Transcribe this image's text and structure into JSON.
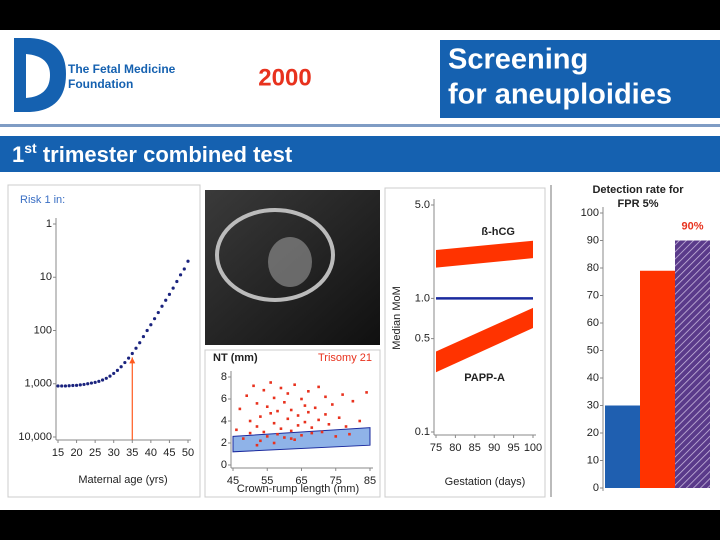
{
  "header": {
    "org_line1": "The Fetal Medicine",
    "org_line2": "Foundation",
    "year": "2000",
    "title_line1": "Screening",
    "title_line2": "for aneuploidies",
    "subtitle": [
      "1",
      "st",
      " trimester combined test"
    ]
  },
  "chart_data": [
    {
      "type": "scatter",
      "ylabel": "Risk 1 in:",
      "xlabel": "Maternal age (yrs)",
      "color": "#1a237e",
      "log_y": true,
      "x": [
        15,
        16,
        17,
        18,
        19,
        20,
        21,
        22,
        23,
        24,
        25,
        26,
        27,
        28,
        29,
        30,
        31,
        32,
        33,
        34,
        35,
        36,
        37,
        38,
        39,
        40,
        41,
        42,
        43,
        44,
        45,
        46,
        47,
        48,
        49,
        50
      ],
      "values": [
        1100,
        1100,
        1100,
        1090,
        1080,
        1070,
        1050,
        1030,
        1000,
        970,
        940,
        900,
        850,
        790,
        720,
        640,
        560,
        480,
        400,
        330,
        270,
        215,
        170,
        130,
        100,
        78,
        60,
        46,
        35,
        27,
        21,
        16,
        12,
        9,
        7,
        5
      ],
      "xlim": [
        15,
        50
      ],
      "xticks": [
        15,
        20,
        25,
        30,
        35,
        40,
        45,
        50
      ],
      "ylim": [
        10000,
        1
      ],
      "yticks": [
        1,
        10,
        100,
        {
          "value": 1000,
          "label": "1,000"
        },
        {
          "value": 10000,
          "label": "10,000"
        }
      ],
      "marker_x": 35,
      "marker_color": "#ff5a1f"
    },
    {
      "type": "scatter",
      "title": "NT (mm)",
      "annotation": "Trisomy 21",
      "xlabel": "Crown-rump length (mm)",
      "color": "#e8321e",
      "x": [
        46,
        47,
        48,
        49,
        50,
        50,
        51,
        52,
        52,
        53,
        53,
        54,
        54,
        55,
        55,
        56,
        56,
        57,
        57,
        58,
        58,
        59,
        59,
        60,
        60,
        61,
        61,
        62,
        62,
        63,
        63,
        64,
        64,
        65,
        65,
        66,
        66,
        67,
        67,
        68,
        68,
        69,
        70,
        70,
        71,
        72,
        72,
        73,
        74,
        75,
        76,
        77,
        78,
        79,
        80,
        82,
        84,
        52,
        57,
        62
      ],
      "values": [
        3.2,
        5.1,
        2.4,
        6.3,
        4.0,
        2.9,
        7.2,
        3.5,
        5.6,
        2.2,
        4.4,
        6.8,
        3.0,
        5.3,
        2.6,
        4.7,
        7.5,
        3.8,
        6.1,
        2.8,
        4.9,
        3.3,
        7.0,
        5.7,
        2.5,
        4.2,
        6.5,
        3.1,
        5.0,
        2.3,
        7.3,
        4.5,
        3.6,
        6.0,
        2.7,
        5.4,
        3.9,
        4.8,
        6.7,
        3.4,
        2.9,
        5.2,
        4.1,
        7.1,
        3.0,
        6.2,
        4.6,
        3.7,
        5.5,
        2.6,
        4.3,
        6.4,
        3.5,
        2.8,
        5.8,
        4.0,
        6.6,
        1.8,
        2.0,
        2.4
      ],
      "band": {
        "color": "#8fb3e8",
        "x": [
          45,
          85
        ],
        "lower": [
          1.2,
          1.8
        ],
        "upper": [
          2.6,
          3.4
        ]
      },
      "xlim": [
        45,
        85
      ],
      "xticks": [
        45,
        55,
        65,
        75,
        85
      ],
      "ylim": [
        0,
        8
      ],
      "yticks": [
        0,
        2,
        4,
        6,
        8
      ]
    },
    {
      "type": "line",
      "ylabel": "Median MoM",
      "xlabel": "Gestation (days)",
      "log_y": true,
      "series": [
        {
          "name": "ß-hCG",
          "color": "#ff3300",
          "x": [
            75,
            100
          ],
          "lower": [
            1.7,
            2.0
          ],
          "upper": [
            2.3,
            2.7
          ]
        },
        {
          "name": "PAPP-A",
          "color": "#ff3300",
          "x": [
            75,
            100
          ],
          "lower": [
            0.28,
            0.6
          ],
          "upper": [
            0.4,
            0.85
          ]
        }
      ],
      "reference": {
        "color": "#1a2a9e",
        "x": [
          75,
          100
        ],
        "values": [
          1,
          1
        ]
      },
      "xlim": [
        75,
        100
      ],
      "xticks": [
        75,
        80,
        85,
        90,
        95,
        100
      ],
      "ylim": [
        0.1,
        5
      ],
      "yticks": [
        0.1,
        0.5,
        {
          "value": 1,
          "label": "1.0"
        },
        {
          "value": 5,
          "label": "5.0"
        }
      ]
    },
    {
      "type": "bar",
      "title": [
        "Detection rate for",
        "FPR 5%"
      ],
      "categories": [
        null,
        null,
        null
      ],
      "values": [
        30,
        79,
        90
      ],
      "value_labels": [
        null,
        null,
        "90%"
      ],
      "colors": [
        "#1f5fb0",
        "#ff3300",
        "#5a3a8a"
      ],
      "hatched": [
        false,
        false,
        true
      ],
      "ylim": [
        0,
        100
      ],
      "yticks": [
        0,
        10,
        20,
        30,
        40,
        50,
        60,
        70,
        80,
        90,
        100
      ]
    }
  ]
}
